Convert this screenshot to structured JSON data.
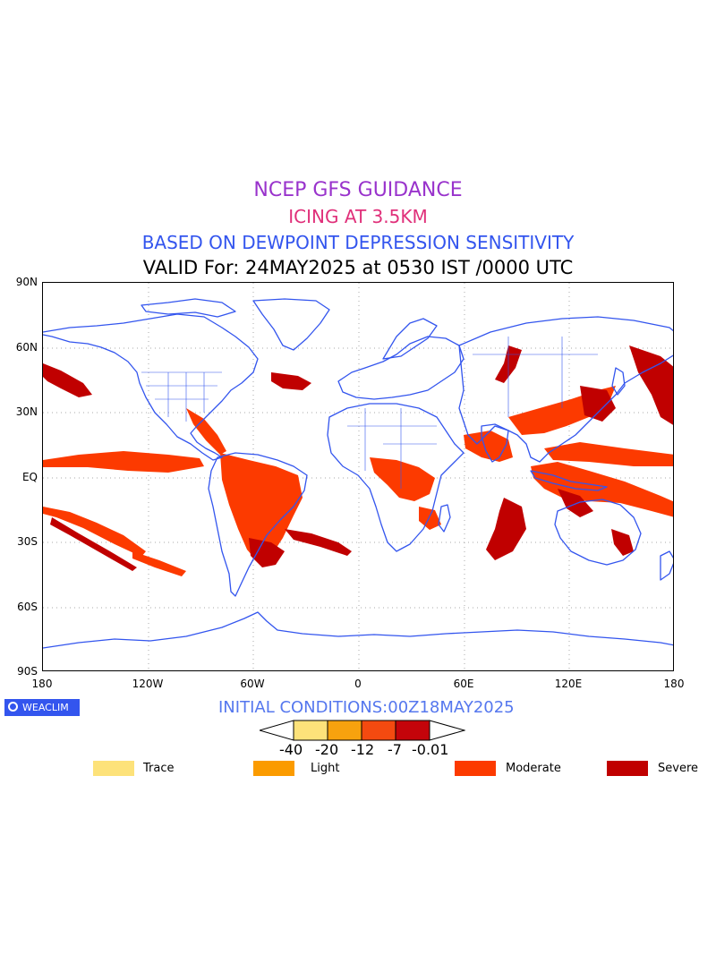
{
  "titles": {
    "line1": "NCEP GFS GUIDANCE",
    "line2": "ICING AT 3.5KM",
    "line3": "BASED ON DEWPOINT DEPRESSION SENSITIVITY",
    "line4": "VALID For: 24MAY2025 at 0530 IST /0000 UTC"
  },
  "title_colors": [
    "#9933cc",
    "#e0307a",
    "#3355ee",
    "#000000"
  ],
  "map": {
    "lat_labels": [
      "90N",
      "60N",
      "30N",
      "EQ",
      "30S",
      "60S",
      "90S"
    ],
    "lon_labels": [
      "180",
      "120W",
      "60W",
      "0",
      "60E",
      "120E",
      "180"
    ],
    "coastline_color": "#3355ee",
    "grid": true
  },
  "logo": {
    "text": "WEACLIM"
  },
  "initial_conditions": "INITIAL CONDITIONS:00Z18MAY2025",
  "scale": {
    "labels": [
      "-40",
      "-20",
      "-12",
      "-7",
      "-0.01"
    ],
    "colors": [
      "#fde27a",
      "#f7a20e",
      "#f44a10",
      "#c4040a"
    ]
  },
  "legend": [
    {
      "label": "Trace",
      "color": "#fde27a"
    },
    {
      "label": "Light",
      "color": "#fb9b00"
    },
    {
      "label": "Moderate",
      "color": "#fc3a00"
    },
    {
      "label": "Severe",
      "color": "#c00000"
    }
  ]
}
